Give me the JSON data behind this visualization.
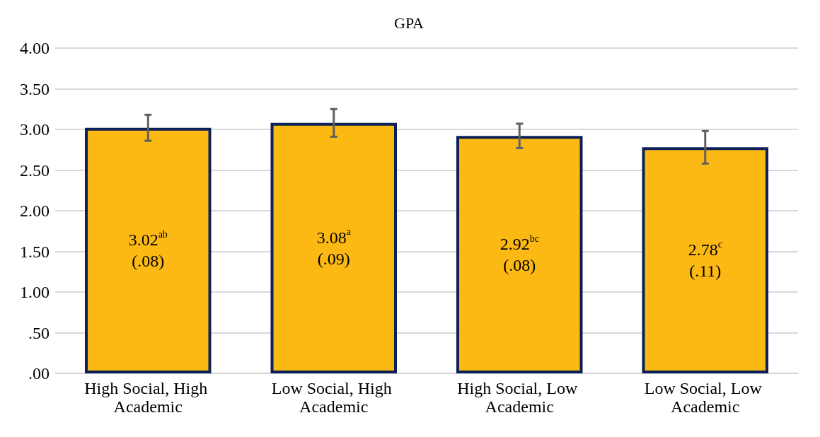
{
  "chart_data": {
    "type": "bar",
    "title": "GPA",
    "categories": [
      "High Social, High Academic",
      "Low Social, High Academic",
      "High Social, Low Academic",
      "Low Social, Low Academic"
    ],
    "series": [
      {
        "color": "#fcb813",
        "values": [
          3.02,
          3.08,
          2.92,
          2.78
        ],
        "errors": [
          0.16,
          0.17,
          0.15,
          0.2
        ],
        "value_labels": [
          "3.02$^{ab}$\n(.08)",
          "3.08$^{a}$\n(.09)",
          "2.92$^{bc}$\n(.08)",
          "2.78$^{c}$\n(.11)"
        ]
      }
    ],
    "ylim": [
      0,
      4
    ],
    "yticks": [
      {
        "value": 0,
        "label": ".00"
      },
      {
        "value": 0.5,
        "label": ".50"
      },
      {
        "value": 1,
        "label": "1.00"
      },
      {
        "value": 1.5,
        "label": "1.50"
      },
      {
        "value": 2,
        "label": "2.00"
      },
      {
        "value": 2.5,
        "label": "2.50"
      },
      {
        "value": 3,
        "label": "3.00"
      },
      {
        "value": 3.5,
        "label": "3.50"
      },
      {
        "value": 4,
        "label": "4.00"
      }
    ],
    "grid": "y"
  }
}
